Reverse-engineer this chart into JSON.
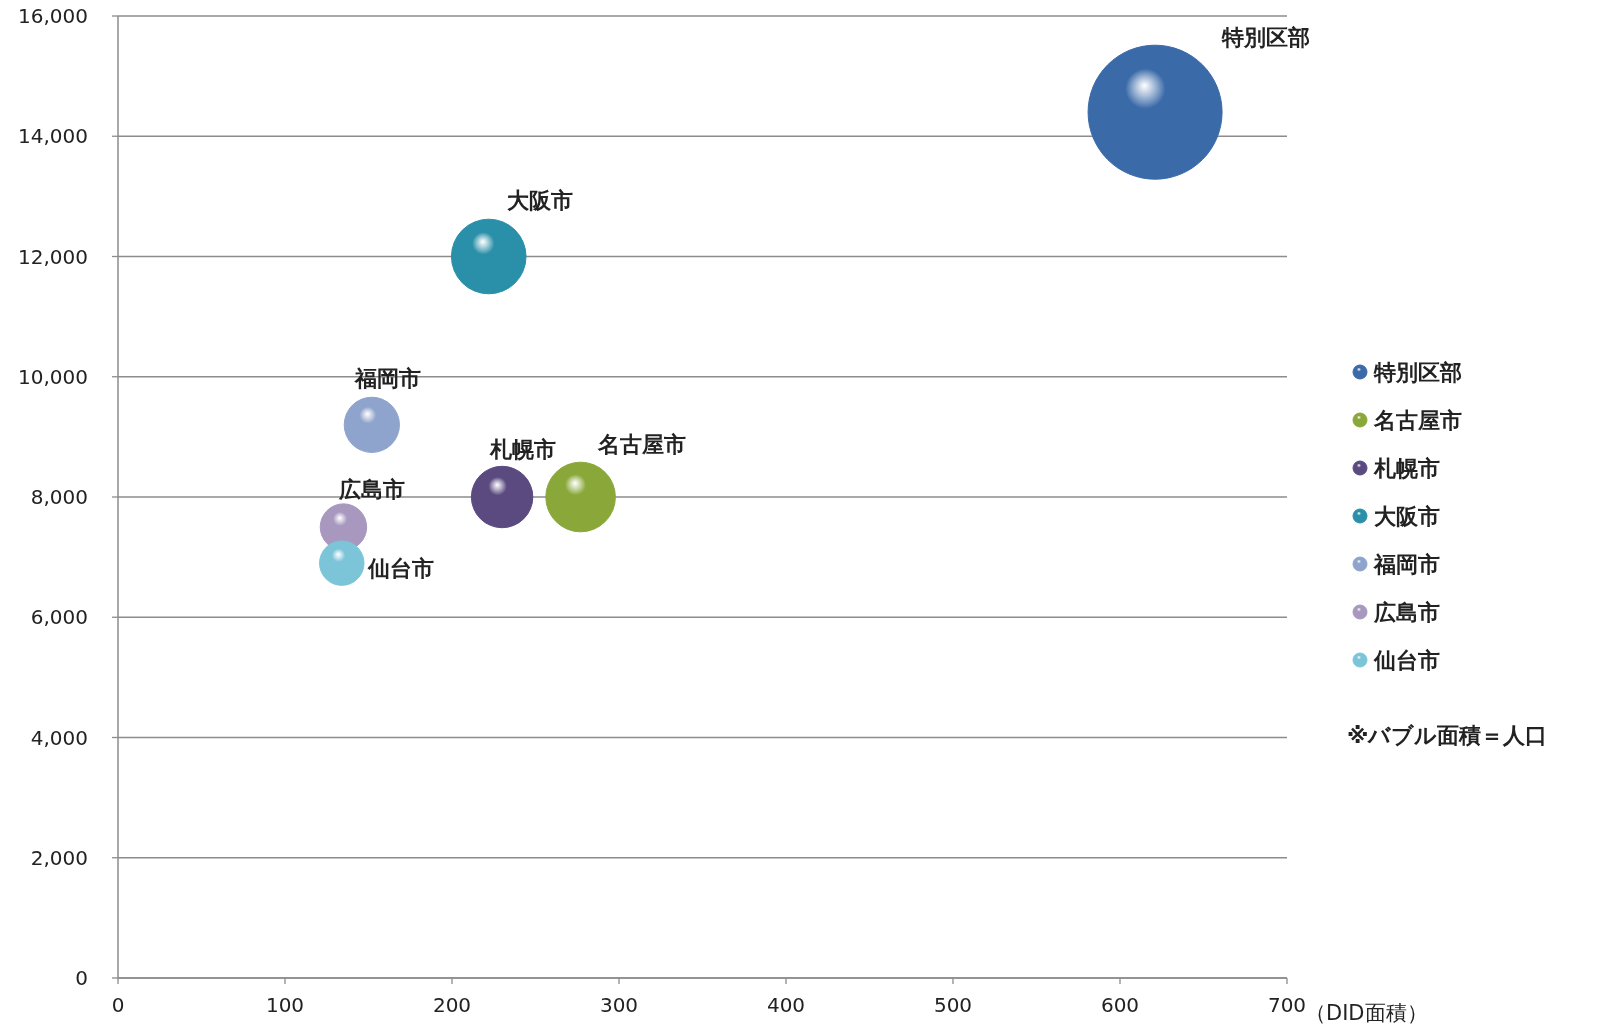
{
  "chart_data": {
    "type": "bubble",
    "xlabel": "（DID面積）",
    "xlim": [
      0,
      700
    ],
    "xticks": [
      0,
      100,
      200,
      300,
      400,
      500,
      600,
      700
    ],
    "ylim": [
      0,
      16000
    ],
    "yticks": [
      {
        "value": 0,
        "label": "0"
      },
      {
        "value": 2000,
        "label": "2,000"
      },
      {
        "value": 4000,
        "label": "4,000"
      },
      {
        "value": 6000,
        "label": "6,000"
      },
      {
        "value": 8000,
        "label": "8,000"
      },
      {
        "value": 10000,
        "label": "10,000"
      },
      {
        "value": 12000,
        "label": "12,000"
      },
      {
        "value": 14000,
        "label": "14,000"
      },
      {
        "value": 16000,
        "label": "16,000"
      }
    ],
    "grid": "y",
    "legend": "right",
    "series": [
      {
        "name": "特別区部",
        "color": "#3a6aa8",
        "x": [
          621
        ],
        "values": [
          14400
        ],
        "sizes": [
          1
        ]
      },
      {
        "name": "名古屋市",
        "color": "#8aa83a",
        "x": [
          277
        ],
        "values": [
          8000
        ],
        "sizes": [
          0.27
        ]
      },
      {
        "name": "札幌市",
        "color": "#5a4a80",
        "x": [
          230
        ],
        "values": [
          8000
        ],
        "sizes": [
          0.21
        ]
      },
      {
        "name": "大阪市",
        "color": "#2a8fa8",
        "x": [
          222
        ],
        "values": [
          12000
        ],
        "sizes": [
          0.31
        ]
      },
      {
        "name": "福岡市",
        "color": "#8fa4cc",
        "x": [
          152
        ],
        "values": [
          9200
        ],
        "sizes": [
          0.17
        ]
      },
      {
        "name": "広島市",
        "color": "#a898c0",
        "x": [
          135
        ],
        "values": [
          7500
        ],
        "sizes": [
          0.12
        ]
      },
      {
        "name": "仙台市",
        "color": "#7cc4d8",
        "x": [
          134
        ],
        "values": [
          6900
        ],
        "sizes": [
          0.11
        ]
      }
    ],
    "annotations": [
      "※バブル面積＝人口"
    ]
  }
}
